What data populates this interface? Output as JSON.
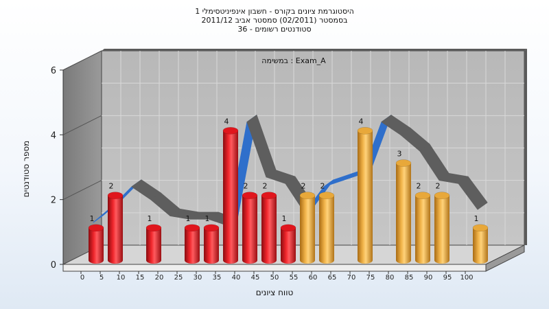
{
  "chart_data": {
    "type": "bar",
    "title": "היסטוגרמת ציונים בקורס - חשבון אינפיניטסימלי 1",
    "subtitle": "בסמסטר (02/2011) סמסטר אביב 2011/12",
    "subtitle2": "סטודנטים רשומים - 36",
    "annotation": "במשימה : Exam_A",
    "xlabel": "טווח ציונים",
    "ylabel": "מספר סטודנטים",
    "ylim": [
      0,
      6
    ],
    "yticks": [
      0,
      2,
      4,
      6
    ],
    "grid": true,
    "x_ticks": [
      0,
      5,
      10,
      15,
      20,
      25,
      30,
      35,
      40,
      45,
      50,
      55,
      60,
      65,
      70,
      75,
      80,
      85,
      90,
      95,
      100
    ],
    "bars": [
      {
        "x": 0,
        "value": 1,
        "color": "#e0161d"
      },
      {
        "x": 5,
        "value": 2,
        "color": "#e0161d"
      },
      {
        "x": 15,
        "value": 1,
        "color": "#e0161d"
      },
      {
        "x": 25,
        "value": 1,
        "color": "#e0161d"
      },
      {
        "x": 30,
        "value": 1,
        "color": "#e0161d"
      },
      {
        "x": 35,
        "value": 4,
        "color": "#e0161d"
      },
      {
        "x": 40,
        "value": 2,
        "color": "#e0161d"
      },
      {
        "x": 45,
        "value": 2,
        "color": "#e0161d"
      },
      {
        "x": 50,
        "value": 1,
        "color": "#e0161d"
      },
      {
        "x": 55,
        "value": 2,
        "color": "#e8a83a"
      },
      {
        "x": 60,
        "value": 2,
        "color": "#e8a83a"
      },
      {
        "x": 70,
        "value": 4,
        "color": "#e8a83a"
      },
      {
        "x": 80,
        "value": 3,
        "color": "#e8a83a"
      },
      {
        "x": 85,
        "value": 2,
        "color": "#e8a83a"
      },
      {
        "x": 90,
        "value": 2,
        "color": "#e8a83a"
      },
      {
        "x": 100,
        "value": 1,
        "color": "#e8a83a"
      }
    ],
    "trend": {
      "x": [
        0,
        5,
        10,
        15,
        20,
        25,
        30,
        35,
        40,
        45,
        50,
        55,
        60,
        65,
        70,
        75,
        80,
        85,
        90,
        95,
        100
      ],
      "y": [
        1,
        1.5,
        2.1,
        1.7,
        1.2,
        1.1,
        1.1,
        0.9,
        4.1,
        2.4,
        2.2,
        1.3,
        2.1,
        2.3,
        2.5,
        4.1,
        3.7,
        3.2,
        2.3,
        2.2,
        1.4
      ],
      "colors": [
        "#ffffff",
        "#5e5e5e",
        "#2f6fcb"
      ]
    }
  }
}
